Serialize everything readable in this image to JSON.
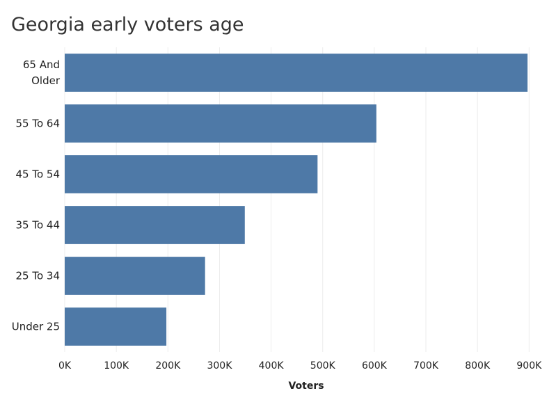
{
  "chart_data": {
    "type": "bar",
    "orientation": "horizontal",
    "title": "Georgia early voters age",
    "xlabel": "Voters",
    "ylabel": "",
    "categories": [
      "65 And Older",
      "55 To 64",
      "45 To 54",
      "35 To 44",
      "25 To 34",
      "Under 25"
    ],
    "category_lines": [
      [
        "65 And",
        "Older"
      ],
      [
        "55 To 64"
      ],
      [
        "45 To 54"
      ],
      [
        "35 To 44"
      ],
      [
        "25 To 34"
      ],
      [
        "Under 25"
      ]
    ],
    "values": [
      897000,
      604000,
      490000,
      349000,
      272000,
      197000
    ],
    "xlim": [
      0,
      940000
    ],
    "xticks": [
      0,
      100000,
      200000,
      300000,
      400000,
      500000,
      600000,
      700000,
      800000,
      900000
    ],
    "xtick_labels": [
      "0K",
      "100K",
      "200K",
      "300K",
      "400K",
      "500K",
      "600K",
      "700K",
      "800K",
      "900K"
    ],
    "grid": "vertical",
    "bar_color": "#4e79a7"
  }
}
